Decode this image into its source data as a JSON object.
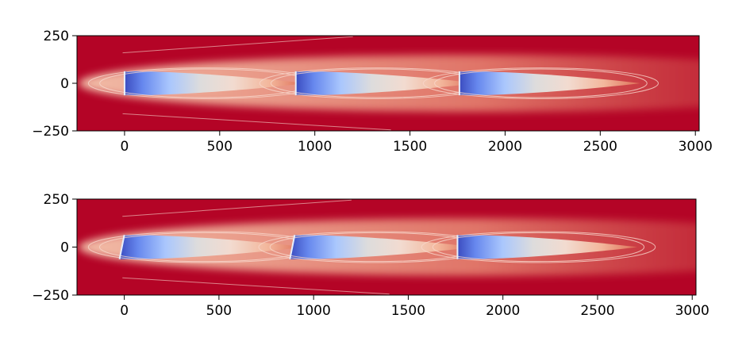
{
  "figure": {
    "background": "#ffffff",
    "colormap": "coolwarm",
    "colors": {
      "field_max": "#b40426",
      "field_mid": "#f2dbd0",
      "field_neutral": "#dddcdc",
      "field_min": "#3b4cc0",
      "contour_line": "#f7d7cc",
      "axis": "#000000"
    }
  },
  "chart_data": [
    {
      "type": "heatmap",
      "plot": "top",
      "title": "",
      "xlabel": "",
      "ylabel": "",
      "xlim": [
        -250,
        3020
      ],
      "ylim": [
        -250,
        250
      ],
      "xticks": [
        0,
        500,
        1000,
        1500,
        2000,
        2500,
        3000
      ],
      "yticks": [
        -250,
        0,
        250
      ],
      "xtick_labels": [
        "0",
        "500",
        "1000",
        "1500",
        "2000",
        "2500",
        "3000"
      ],
      "ytick_labels": [
        "−250",
        "0",
        "250"
      ],
      "turbines": [
        {
          "x": 0,
          "y": 0,
          "rotor_half_width": 63,
          "yaw_shift": 0
        },
        {
          "x": 900,
          "y": 0,
          "rotor_half_width": 63,
          "yaw_shift": 0
        },
        {
          "x": 1760,
          "y": 0,
          "rotor_half_width": 63,
          "yaw_shift": 0
        }
      ]
    },
    {
      "type": "heatmap",
      "plot": "bottom",
      "title": "",
      "xlabel": "",
      "ylabel": "",
      "xlim": [
        -250,
        3020
      ],
      "ylim": [
        -250,
        250
      ],
      "xticks": [
        0,
        500,
        1000,
        1500,
        2000,
        2500,
        3000
      ],
      "yticks": [
        -250,
        0,
        250
      ],
      "xtick_labels": [
        "0",
        "500",
        "1000",
        "1500",
        "2000",
        "2500",
        "3000"
      ],
      "ytick_labels": [
        "−250",
        "0",
        "250"
      ],
      "turbines": [
        {
          "x": 0,
          "y": 0,
          "rotor_half_width": 63,
          "yaw_shift": -25
        },
        {
          "x": 900,
          "y": 0,
          "rotor_half_width": 63,
          "yaw_shift": -25
        },
        {
          "x": 1760,
          "y": 0,
          "rotor_half_width": 63,
          "yaw_shift": 0
        }
      ]
    }
  ]
}
